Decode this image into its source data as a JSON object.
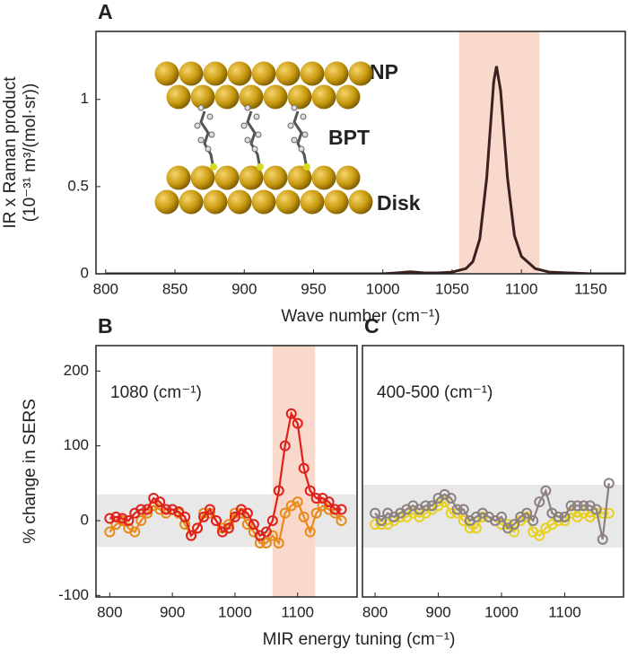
{
  "chart_data": [
    {
      "type": "line",
      "title": "A",
      "ylabel": [
        "IR x  Raman product",
        "(10⁻³¹ m³/(mol·sr))"
      ],
      "xlabel": "Wave number (cm⁻¹)",
      "annotations": [
        "NP",
        "BPT",
        "Disk"
      ],
      "x": [
        800,
        850,
        900,
        950,
        1000,
        1010,
        1020,
        1030,
        1040,
        1050,
        1060,
        1065,
        1070,
        1075,
        1080,
        1082,
        1085,
        1090,
        1095,
        1100,
        1110,
        1120,
        1150,
        1175
      ],
      "series": [
        {
          "color": "#3b2020",
          "values": [
            0,
            0,
            0,
            0,
            0,
            0.005,
            0.012,
            0.005,
            0.005,
            0.01,
            0.03,
            0.07,
            0.2,
            0.55,
            1.1,
            1.19,
            1.05,
            0.55,
            0.22,
            0.1,
            0.03,
            0.01,
            0,
            0
          ]
        }
      ],
      "highlight": [
        1055,
        1113
      ],
      "highlight_color": "#f9d9cc",
      "xlim": [
        793,
        1175
      ],
      "ylim": [
        0,
        1.39
      ],
      "xticks": [
        800,
        850,
        900,
        950,
        1000,
        1050,
        1100,
        1150
      ],
      "yticks": [
        0,
        0.5,
        1
      ]
    },
    {
      "type": "line",
      "title": "B",
      "ylabel": [
        "% change in SERS"
      ],
      "xlabel": "MIR energy tuning (cm⁻¹)",
      "annotations": [
        "1080 (cm⁻¹)"
      ],
      "x": [
        800,
        810,
        820,
        830,
        840,
        850,
        860,
        870,
        880,
        890,
        900,
        910,
        920,
        930,
        940,
        950,
        960,
        970,
        980,
        990,
        1000,
        1010,
        1020,
        1030,
        1040,
        1050,
        1060,
        1070,
        1080,
        1090,
        1100,
        1110,
        1120,
        1130,
        1140,
        1150,
        1160,
        1170
      ],
      "series": [
        {
          "color": "#e88a1a",
          "values": [
            -15,
            -5,
            0,
            -10,
            -15,
            0,
            10,
            20,
            15,
            10,
            15,
            10,
            -5,
            -20,
            -10,
            10,
            10,
            0,
            -10,
            -5,
            10,
            10,
            -5,
            -15,
            -30,
            -30,
            -20,
            -30,
            10,
            20,
            25,
            5,
            -15,
            10,
            20,
            15,
            10,
            0
          ]
        },
        {
          "color": "#e0201b",
          "values": [
            3,
            5,
            3,
            0,
            10,
            15,
            15,
            30,
            25,
            15,
            15,
            12,
            5,
            -20,
            -10,
            5,
            15,
            0,
            -15,
            -10,
            5,
            15,
            10,
            -5,
            -20,
            -15,
            0,
            40,
            100,
            143,
            130,
            70,
            40,
            30,
            30,
            25,
            15,
            15
          ]
        }
      ],
      "highlight": [
        1060,
        1128
      ],
      "highlight_color": "#f9d9cc",
      "band_y": [
        -35,
        35
      ],
      "band_color": "#e8e8e8",
      "xlim": [
        778,
        1195
      ],
      "ylim": [
        -102,
        234
      ],
      "xticks": [
        800,
        900,
        1000,
        1100
      ],
      "yticks": [
        -100,
        0,
        100,
        200
      ]
    },
    {
      "type": "line",
      "title": "C",
      "annotations": [
        "400-500 (cm⁻¹)"
      ],
      "x": [
        800,
        810,
        820,
        830,
        840,
        850,
        860,
        870,
        880,
        890,
        900,
        910,
        920,
        930,
        940,
        950,
        960,
        970,
        980,
        990,
        1000,
        1010,
        1020,
        1030,
        1040,
        1050,
        1060,
        1070,
        1080,
        1090,
        1100,
        1110,
        1120,
        1130,
        1140,
        1150,
        1160,
        1170
      ],
      "series": [
        {
          "color": "#e8d020",
          "values": [
            -5,
            -5,
            -5,
            0,
            5,
            5,
            10,
            5,
            10,
            15,
            20,
            25,
            10,
            10,
            0,
            -10,
            -10,
            5,
            5,
            0,
            -5,
            -5,
            -15,
            0,
            5,
            -15,
            -20,
            -10,
            -5,
            0,
            0,
            10,
            5,
            10,
            5,
            10,
            10,
            10
          ]
        },
        {
          "color": "#8c8080",
          "values": [
            10,
            0,
            10,
            5,
            10,
            15,
            20,
            15,
            20,
            20,
            30,
            35,
            30,
            15,
            15,
            0,
            5,
            10,
            5,
            0,
            5,
            -10,
            -5,
            5,
            10,
            0,
            25,
            40,
            10,
            5,
            5,
            20,
            20,
            20,
            20,
            15,
            -25,
            50
          ]
        }
      ],
      "band_y": [
        -36,
        48
      ],
      "band_color": "#e8e8e8",
      "xlim": [
        780,
        1193
      ],
      "ylim": [
        -102,
        234
      ],
      "xticks": [
        800,
        900,
        1000,
        1100
      ]
    }
  ]
}
